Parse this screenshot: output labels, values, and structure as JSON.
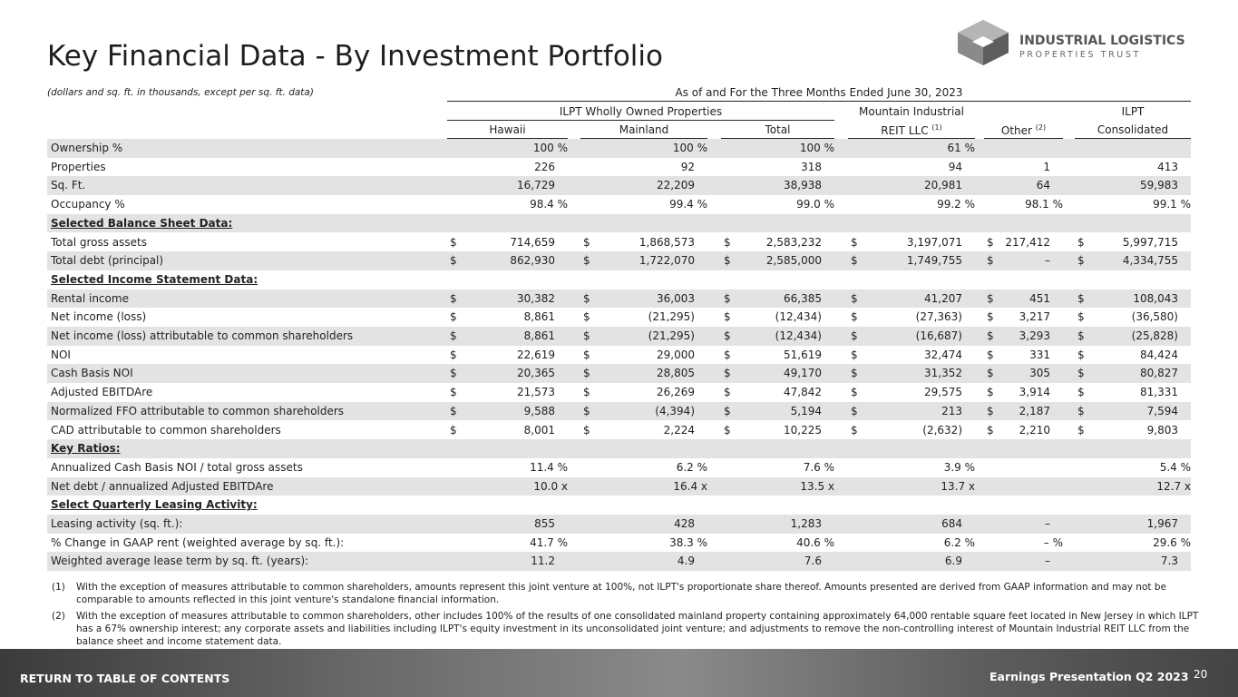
{
  "header": {
    "title": "Key Financial Data - By Investment Portfolio",
    "logo": {
      "line1": "INDUSTRIAL LOGISTICS",
      "line2": "PROPERTIES TRUST"
    }
  },
  "table": {
    "note": "(dollars and sq. ft. in thousands, except per sq. ft. data)",
    "period": "As of and For the Three Months Ended June 30, 2023",
    "groups": [
      "ILPT Wholly Owned Properties",
      "Mountain Industrial",
      "ILPT"
    ],
    "columns": [
      {
        "label": "Hawaii"
      },
      {
        "label": "Mainland"
      },
      {
        "label": "Total"
      },
      {
        "label": "REIT LLC",
        "sup": "(1)"
      },
      {
        "label": "Other",
        "sup": "(2)"
      },
      {
        "label": "Consolidated"
      }
    ],
    "rows": [
      {
        "label": "Ownership %",
        "cells": [
          "100 %",
          "100 %",
          "100 %",
          "61 %",
          null,
          null
        ]
      },
      {
        "label": "Properties",
        "cells": [
          "226",
          "92",
          "318",
          "94",
          "1",
          "413"
        ]
      },
      {
        "label": "Sq. Ft.",
        "cells": [
          "16,729",
          "22,209",
          "38,938",
          "20,981",
          "64",
          "59,983"
        ]
      },
      {
        "label": "Occupancy %",
        "cells": [
          "98.4 %",
          "99.4 %",
          "99.0 %",
          "99.2 %",
          "98.1 %",
          "99.1 %"
        ]
      },
      {
        "label": "Selected Balance Sheet Data:",
        "section": true
      },
      {
        "label": "Total gross assets",
        "currency": "$",
        "cells": [
          "714,659",
          "1,868,573",
          "2,583,232",
          "3,197,071",
          "217,412",
          "5,997,715"
        ]
      },
      {
        "label": "Total debt (principal)",
        "currency": "$",
        "cells": [
          "862,930",
          "1,722,070",
          "2,585,000",
          "1,749,755",
          "–",
          "4,334,755"
        ]
      },
      {
        "label": "Selected Income Statement Data:",
        "section": true
      },
      {
        "label": "Rental income",
        "currency": "$",
        "cells": [
          "30,382",
          "36,003",
          "66,385",
          "41,207",
          "451",
          "108,043"
        ]
      },
      {
        "label": "Net income (loss)",
        "currency": "$",
        "cells": [
          "8,861",
          "(21,295)",
          "(12,434)",
          "(27,363)",
          "3,217",
          "(36,580)"
        ]
      },
      {
        "label": "Net income (loss) attributable to common shareholders",
        "currency": "$",
        "cells": [
          "8,861",
          "(21,295)",
          "(12,434)",
          "(16,687)",
          "3,293",
          "(25,828)"
        ]
      },
      {
        "label": "NOI",
        "currency": "$",
        "cells": [
          "22,619",
          "29,000",
          "51,619",
          "32,474",
          "331",
          "84,424"
        ]
      },
      {
        "label": "Cash Basis NOI",
        "currency": "$",
        "cells": [
          "20,365",
          "28,805",
          "49,170",
          "31,352",
          "305",
          "80,827"
        ]
      },
      {
        "label": "Adjusted EBITDAre",
        "currency": "$",
        "cells": [
          "21,573",
          "26,269",
          "47,842",
          "29,575",
          "3,914",
          "81,331"
        ]
      },
      {
        "label": "Normalized FFO attributable to common shareholders",
        "currency": "$",
        "cells": [
          "9,588",
          "(4,394)",
          "5,194",
          "213",
          "2,187",
          "7,594"
        ]
      },
      {
        "label": "CAD attributable to common shareholders",
        "currency": "$",
        "cells": [
          "8,001",
          "2,224",
          "10,225",
          "(2,632)",
          "2,210",
          "9,803"
        ]
      },
      {
        "label": "Key Ratios:",
        "section": true
      },
      {
        "label": "Annualized Cash Basis NOI / total gross assets",
        "cells": [
          "11.4 %",
          "6.2 %",
          "7.6 %",
          "3.9 %",
          null,
          "5.4 %"
        ]
      },
      {
        "label": "Net debt / annualized Adjusted EBITDAre",
        "cells": [
          "10.0 x",
          "16.4 x",
          "13.5 x",
          "13.7 x",
          null,
          "12.7 x"
        ]
      },
      {
        "label": "Select Quarterly Leasing Activity:",
        "section": true
      },
      {
        "label": "Leasing activity (sq. ft.):",
        "cells": [
          "855",
          "428",
          "1,283",
          "684",
          "–",
          "1,967"
        ]
      },
      {
        "label": "% Change in GAAP rent (weighted average by sq. ft.):",
        "cells": [
          "41.7 %",
          "38.3 %",
          "40.6 %",
          "6.2 %",
          "– %",
          "29.6 %"
        ]
      },
      {
        "label": "Weighted average lease term by sq. ft. (years):",
        "cells": [
          "11.2",
          "4.9",
          "7.6",
          "6.9",
          "–",
          "7.3"
        ]
      }
    ]
  },
  "footnotes": [
    {
      "marker": "(1)",
      "text": "With the exception of measures attributable to common shareholders, amounts represent this joint venture at 100%, not ILPT's proportionate share thereof. Amounts presented are derived from GAAP information and may not be comparable to amounts reflected in this joint venture's standalone financial information."
    },
    {
      "marker": "(2)",
      "text": "With the exception of measures attributable to common shareholders, other includes 100% of the results of one consolidated mainland property containing approximately 64,000 rentable square feet located in New Jersey in which ILPT has a 67% ownership interest; any corporate assets and liabilities including ILPT's equity investment in its unconsolidated joint venture; and adjustments to remove the non-controlling interest of Mountain Industrial REIT LLC from the balance sheet and income statement data."
    }
  ],
  "footer": {
    "link": "RETURN TO TABLE OF CONTENTS",
    "presentation": "Earnings Presentation Q2 2023",
    "page": "20"
  }
}
